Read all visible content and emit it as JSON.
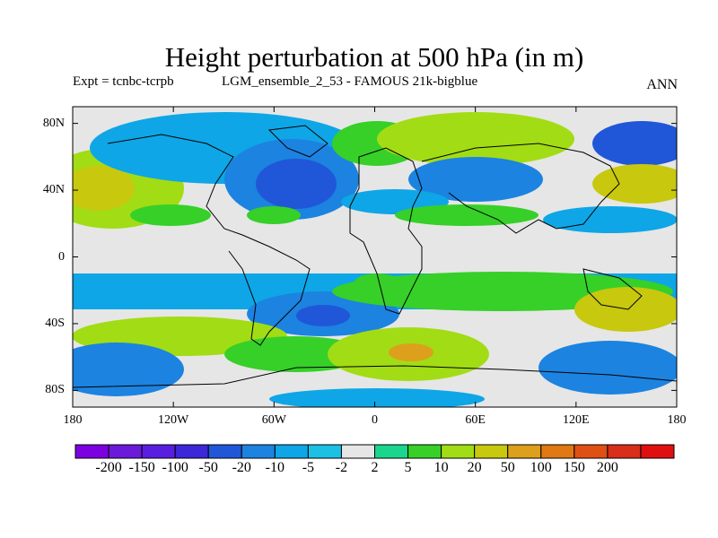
{
  "title": "Height perturbation at 500 hPa (in m)",
  "subtitle_left": "Expt = tcnbc-tcrpb",
  "subtitle_center": "LGM_ensemble_2_53 - FAMOUS 21k-bigblue",
  "subtitle_right": "ANN",
  "map": {
    "projection": "cylindrical equidistant",
    "lon_range": [
      -180,
      180
    ],
    "lat_range": [
      -90,
      90
    ],
    "background_color": "#e6e6e6",
    "lat_ticks": [
      {
        "value": 80,
        "label": "80N"
      },
      {
        "value": 40,
        "label": "40N"
      },
      {
        "value": 0,
        "label": "0"
      },
      {
        "value": -40,
        "label": "40S"
      },
      {
        "value": -80,
        "label": "80S"
      }
    ],
    "lon_ticks": [
      {
        "value": -180,
        "label": "180"
      },
      {
        "value": -120,
        "label": "120W"
      },
      {
        "value": -60,
        "label": "60W"
      },
      {
        "value": 0,
        "label": "0"
      },
      {
        "value": 60,
        "label": "60E"
      },
      {
        "value": 120,
        "label": "120E"
      },
      {
        "value": 180,
        "label": "180"
      }
    ]
  },
  "colorbar": {
    "colors": [
      "#7c00e0",
      "#6a1ad8",
      "#5a1ee0",
      "#3c28d8",
      "#2057d8",
      "#1c83e0",
      "#0ea6e6",
      "#1cc0e4",
      "#e6e6e6",
      "#1ad68c",
      "#36d028",
      "#a2dc14",
      "#c8c80e",
      "#dca01c",
      "#e07814",
      "#e05014",
      "#d82e1a",
      "#e01010"
    ],
    "labels": [
      "-200",
      "-150",
      "-100",
      "-50",
      "-20",
      "-10",
      "-5",
      "-2",
      "2",
      "5",
      "10",
      "20",
      "50",
      "100",
      "150",
      "200"
    ]
  },
  "chart_data": {
    "type": "heatmap",
    "title": "Height perturbation at 500 hPa (in m)",
    "variable": "Height perturbation at 500 hPa",
    "units": "m",
    "levels": [
      -200,
      -150,
      -100,
      -50,
      -20,
      -10,
      -5,
      -2,
      2,
      5,
      10,
      20,
      50,
      100,
      150,
      200
    ],
    "fields": [
      {
        "lon": -170,
        "lat": 43,
        "value": 20
      },
      {
        "lon": -155,
        "lat": 66,
        "value": -10
      },
      {
        "lon": -110,
        "lat": 55,
        "value": -10
      },
      {
        "lon": -42,
        "lat": 44,
        "value": -50
      },
      {
        "lon": -115,
        "lat": 24,
        "value": 5
      },
      {
        "lon": -45,
        "lat": 75,
        "value": -10
      },
      {
        "lon": 0,
        "lat": 53,
        "value": 5
      },
      {
        "lon": 55,
        "lat": 36,
        "value": -10
      },
      {
        "lon": 25,
        "lat": 57,
        "value": 5
      },
      {
        "lon": 95,
        "lat": 67,
        "value": 5
      },
      {
        "lon": 158,
        "lat": 74,
        "value": -20
      },
      {
        "lon": 162,
        "lat": 43,
        "value": 20
      },
      {
        "lon": 40,
        "lat": 19,
        "value": 5
      },
      {
        "lon": 140,
        "lat": 24,
        "value": -5
      },
      {
        "lon": -120,
        "lat": -24,
        "value": -5
      },
      {
        "lon": -40,
        "lat": -38,
        "value": -20
      },
      {
        "lon": 10,
        "lat": -15,
        "value": 5
      },
      {
        "lon": 70,
        "lat": -33,
        "value": 10
      },
      {
        "lon": 155,
        "lat": -33,
        "value": 20
      },
      {
        "lon": -155,
        "lat": -43,
        "value": 5
      },
      {
        "lon": -100,
        "lat": -55,
        "value": 10
      },
      {
        "lon": -165,
        "lat": -75,
        "value": -10
      },
      {
        "lon": 0,
        "lat": -48,
        "value": 10
      },
      {
        "lon": 15,
        "lat": -60,
        "value": 20
      },
      {
        "lon": 160,
        "lat": -73,
        "value": -10
      }
    ]
  }
}
